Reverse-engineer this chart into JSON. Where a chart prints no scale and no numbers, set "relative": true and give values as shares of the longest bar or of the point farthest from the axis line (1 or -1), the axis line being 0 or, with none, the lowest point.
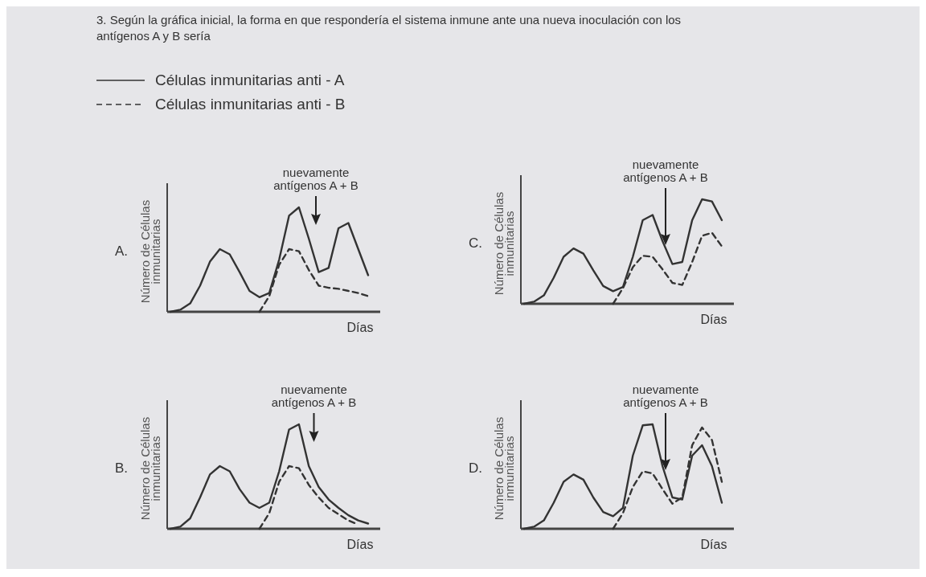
{
  "chart_data": [
    {
      "type": "line",
      "title": "A.",
      "xlabel": "Días",
      "ylabel": "Número de Células inmunitarias",
      "relative": true,
      "legend": "top left",
      "marker": "none",
      "annotations": [
        "3. Según la gráfica inicial, la forma en que respondería el sistema inmune ante una nueva inoculación con los antígenos A y B sería",
        "nuevamente antígenos A + B"
      ],
      "categories": [
        null,
        null,
        null,
        null,
        null,
        null,
        null,
        null,
        null,
        null,
        null,
        null,
        null,
        null,
        null,
        null,
        null,
        null,
        null,
        null,
        null
      ],
      "series": [
        {
          "name": "Células inmunitarias anti - A",
          "color": "#333333",
          "line_style": "solid",
          "values": [
            0,
            0.02,
            0.08,
            0.25,
            0.48,
            0.6,
            0.55,
            0.38,
            0.2,
            0.14,
            0.18,
            0.5,
            0.92,
            1,
            0.7,
            0.38,
            0.42,
            0.8,
            0.85,
            0.6,
            0.35
          ]
        },
        {
          "name": "Células inmunitarias anti - B",
          "color": "#333333",
          "line_style": "dashed",
          "values": [
            null,
            null,
            null,
            null,
            null,
            null,
            null,
            null,
            null,
            0,
            0.15,
            0.45,
            0.6,
            0.58,
            0.4,
            0.25,
            0.23,
            0.22,
            0.2,
            0.18,
            0.15
          ]
        }
      ]
    },
    {
      "type": "line",
      "title": "C.",
      "xlabel": "Días",
      "ylabel": "Número de Células inmunitarias",
      "relative": true,
      "marker": "none",
      "annotations": [
        "nuevamente antígenos A + B"
      ],
      "categories": [
        null,
        null,
        null,
        null,
        null,
        null,
        null,
        null,
        null,
        null,
        null,
        null,
        null,
        null,
        null,
        null,
        null,
        null,
        null,
        null,
        null
      ],
      "series": [
        {
          "color": "#333333",
          "line_style": "solid",
          "values": [
            0,
            0.02,
            0.08,
            0.25,
            0.45,
            0.53,
            0.48,
            0.32,
            0.17,
            0.12,
            0.16,
            0.45,
            0.8,
            0.85,
            0.6,
            0.38,
            0.4,
            0.8,
            1,
            0.98,
            0.8
          ]
        },
        {
          "color": "#333333",
          "line_style": "dashed",
          "values": [
            null,
            null,
            null,
            null,
            null,
            null,
            null,
            null,
            null,
            0,
            0.15,
            0.35,
            0.46,
            0.45,
            0.33,
            0.2,
            0.18,
            0.4,
            0.65,
            0.68,
            0.55
          ]
        }
      ]
    },
    {
      "type": "line",
      "title": "B.",
      "xlabel": "Días",
      "ylabel": "Número de Células inmunitarias",
      "relative": true,
      "marker": "none",
      "annotations": [
        "nuevamente antígenos A + B"
      ],
      "categories": [
        null,
        null,
        null,
        null,
        null,
        null,
        null,
        null,
        null,
        null,
        null,
        null,
        null,
        null,
        null,
        null,
        null,
        null,
        null,
        null,
        null
      ],
      "series": [
        {
          "color": "#333333",
          "line_style": "solid",
          "values": [
            0,
            0.02,
            0.1,
            0.3,
            0.52,
            0.6,
            0.55,
            0.38,
            0.25,
            0.2,
            0.25,
            0.55,
            0.95,
            1,
            0.6,
            0.4,
            0.28,
            0.2,
            0.13,
            0.08,
            0.05
          ]
        },
        {
          "color": "#333333",
          "line_style": "dashed",
          "values": [
            null,
            null,
            null,
            null,
            null,
            null,
            null,
            null,
            null,
            0,
            0.15,
            0.45,
            0.6,
            0.58,
            0.42,
            0.3,
            0.2,
            0.14,
            0.08,
            0.04,
            null
          ]
        }
      ]
    },
    {
      "type": "line",
      "title": "D.",
      "xlabel": "Días",
      "ylabel": "Número de Células inmunitarias",
      "relative": true,
      "marker": "none",
      "annotations": [
        "nuevamente antígenos A + B"
      ],
      "categories": [
        null,
        null,
        null,
        null,
        null,
        null,
        null,
        null,
        null,
        null,
        null,
        null,
        null,
        null,
        null,
        null,
        null,
        null,
        null,
        null,
        null
      ],
      "series": [
        {
          "color": "#333333",
          "line_style": "solid",
          "values": [
            0,
            0.02,
            0.08,
            0.25,
            0.45,
            0.52,
            0.47,
            0.3,
            0.16,
            0.12,
            0.2,
            0.7,
            0.99,
            1,
            0.6,
            0.3,
            0.28,
            0.7,
            0.8,
            0.6,
            0.25
          ]
        },
        {
          "color": "#333333",
          "line_style": "dashed",
          "values": [
            null,
            null,
            null,
            null,
            null,
            null,
            null,
            null,
            null,
            0,
            0.15,
            0.4,
            0.55,
            0.53,
            0.38,
            0.24,
            0.3,
            0.8,
            0.97,
            0.85,
            0.45
          ]
        }
      ]
    }
  ]
}
